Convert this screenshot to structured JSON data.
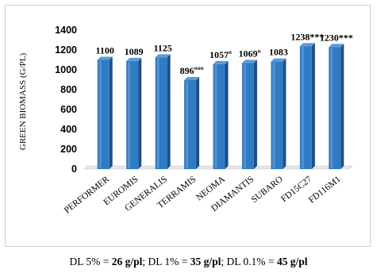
{
  "chart_data": {
    "type": "bar",
    "categories": [
      "PERFORMER",
      "EUROMIS",
      "GENERALIS",
      "TERRAMIS",
      "NEOMA",
      "DIAMANTIS",
      "SUBARO",
      "FD15C27",
      "FD116M1"
    ],
    "values": [
      1100,
      1089,
      1125,
      896,
      1057,
      1069,
      1083,
      1238,
      1230
    ],
    "data_labels": [
      "1100",
      "1089",
      "1125",
      "896ººº",
      "1057º",
      "1069º",
      "1083",
      "1238***",
      "1230***"
    ],
    "ylabel": "GREEN BIOMASS (G/PL)",
    "ylim": [
      0,
      1400
    ],
    "yticks": [
      0,
      200,
      400,
      600,
      800,
      1000,
      1200,
      1400
    ],
    "grid": false,
    "legend": "none",
    "bar_color": "#2f7bc4",
    "bar_side_color": "#1d4f86",
    "bar_top_color": "#5b9bd8"
  },
  "note": {
    "dl5_prefix": "DL 5% = ",
    "dl5_value": "26 g/pl",
    "dl1_prefix": "; DL 1% = ",
    "dl1_value": "35 g/pl",
    "dl01_prefix": "; DL 0.1% = ",
    "dl01_value": "45 g/pl"
  }
}
